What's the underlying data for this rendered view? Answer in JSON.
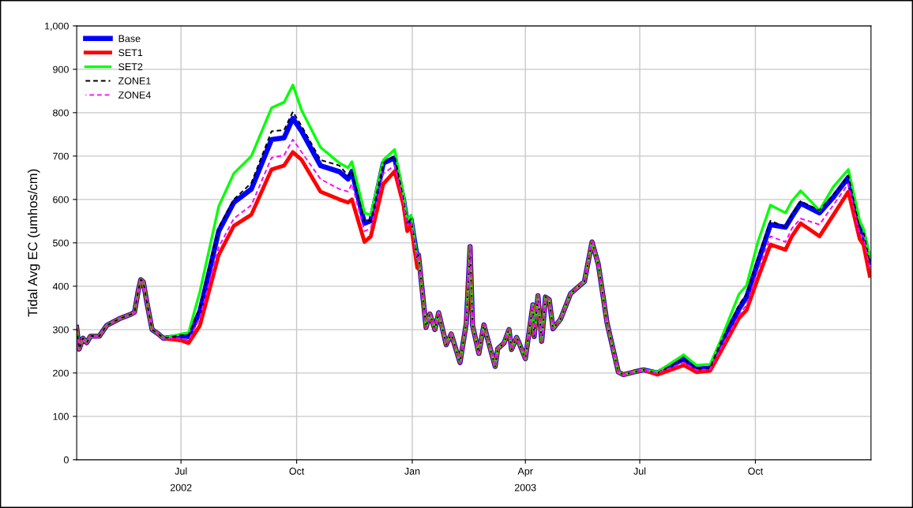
{
  "chart_data": {
    "type": "line",
    "ylabel": "Tidal Avg EC (umhos/cm)",
    "x": [
      "2002-04-09",
      "2002-04-11",
      "2002-04-14",
      "2002-04-17",
      "2002-04-20",
      "2002-04-27",
      "2002-05-03",
      "2002-05-13",
      "2002-05-22",
      "2002-05-25",
      "2002-05-28",
      "2002-05-30",
      "2002-06-01",
      "2002-06-04",
      "2002-06-08",
      "2002-06-13",
      "2002-06-17",
      "2002-07-01",
      "2002-07-07",
      "2002-07-16",
      "2002-07-31",
      "2002-08-12",
      "2002-08-26",
      "2002-09-11",
      "2002-09-21",
      "2002-09-28",
      "2002-10-05",
      "2002-10-20",
      "2002-11-04",
      "2002-11-11",
      "2002-11-14",
      "2002-11-24",
      "2002-11-29",
      "2002-12-09",
      "2002-12-18",
      "2002-12-25",
      "2002-12-28",
      "2002-12-31",
      "2003-01-05",
      "2003-01-06",
      "2003-01-12",
      "2003-01-15",
      "2003-01-19",
      "2003-01-22",
      "2003-01-27",
      "2003-01-28",
      "2003-02-01",
      "2003-02-08",
      "2003-02-13",
      "2003-02-16",
      "2003-02-18",
      "2003-02-23",
      "2003-02-27",
      "2003-03-02",
      "2003-03-08",
      "2003-03-10",
      "2003-03-15",
      "2003-03-19",
      "2003-03-21",
      "2003-03-25",
      "2003-03-27",
      "2003-04-01",
      "2003-04-07",
      "2003-04-08",
      "2003-04-11",
      "2003-04-14",
      "2003-04-17",
      "2003-04-20",
      "2003-04-23",
      "2003-04-29",
      "2003-05-07",
      "2003-05-18",
      "2003-05-24",
      "2003-05-29",
      "2003-06-05",
      "2003-06-14",
      "2003-06-18",
      "2003-06-26",
      "2003-07-04",
      "2003-07-15",
      "2003-08-05",
      "2003-08-15",
      "2003-08-26",
      "2003-09-03",
      "2003-09-18",
      "2003-09-24",
      "2003-10-03",
      "2003-10-13",
      "2003-10-25",
      "2003-10-30",
      "2003-11-06",
      "2003-11-21",
      "2003-12-02",
      "2003-12-14",
      "2003-12-23",
      "2003-12-26",
      "2003-12-31"
    ],
    "series": [
      {
        "name": "Base",
        "color": "#0000ff",
        "line_style": "solid",
        "values": [
          305,
          255,
          280,
          270,
          285,
          285,
          310,
          325,
          335,
          340,
          390,
          415,
          410,
          360,
          300,
          290,
          280,
          285,
          284,
          342,
          527,
          593,
          624,
          738,
          742,
          787,
          757,
          678,
          664,
          647,
          665,
          545,
          551,
          684,
          696,
          600,
          545,
          555,
          465,
          472,
          305,
          336,
          300,
          339,
          278,
          265,
          290,
          224,
          315,
          491,
          309,
          245,
          311,
          278,
          215,
          256,
          269,
          300,
          254,
          282,
          269,
          233,
          357,
          284,
          378,
          273,
          375,
          369,
          302,
          324,
          383,
          411,
          502,
          451,
          315,
          202,
          196,
          202,
          207,
          200,
          233,
          209,
          211,
          264,
          348,
          375,
          455,
          542,
          536,
          560,
          591,
          569,
          605,
          651,
          533,
          520,
          455
        ]
      },
      {
        "name": "SET1",
        "color": "#ff0000",
        "line_style": "solid",
        "values": [
          305,
          255,
          280,
          270,
          285,
          285,
          310,
          325,
          335,
          340,
          390,
          415,
          410,
          360,
          300,
          290,
          280,
          275,
          269,
          309,
          472,
          539,
          565,
          669,
          678,
          709,
          691,
          618,
          600,
          593,
          600,
          502,
          515,
          636,
          665,
          587,
          527,
          540,
          442,
          472,
          305,
          336,
          300,
          339,
          278,
          265,
          290,
          224,
          315,
          491,
          309,
          245,
          311,
          278,
          215,
          256,
          269,
          300,
          254,
          282,
          269,
          233,
          357,
          284,
          378,
          273,
          375,
          369,
          302,
          324,
          383,
          411,
          502,
          451,
          315,
          202,
          196,
          202,
          207,
          196,
          218,
          202,
          205,
          247,
          327,
          345,
          418,
          496,
          484,
          515,
          545,
          515,
          564,
          618,
          509,
          496,
          424
        ]
      },
      {
        "name": "SET2",
        "color": "#00ff00",
        "line_style": "solid",
        "values": [
          305,
          255,
          280,
          270,
          285,
          285,
          310,
          325,
          335,
          340,
          390,
          415,
          410,
          360,
          300,
          290,
          280,
          290,
          293,
          387,
          584,
          660,
          700,
          811,
          824,
          864,
          805,
          720,
          684,
          673,
          687,
          569,
          564,
          691,
          715,
          611,
          551,
          564,
          465,
          472,
          305,
          336,
          300,
          339,
          278,
          265,
          290,
          224,
          315,
          491,
          309,
          245,
          311,
          278,
          215,
          256,
          269,
          300,
          254,
          282,
          269,
          233,
          357,
          284,
          378,
          273,
          375,
          369,
          302,
          324,
          383,
          411,
          502,
          451,
          315,
          202,
          196,
          202,
          207,
          202,
          242,
          218,
          220,
          273,
          382,
          402,
          502,
          587,
          569,
          596,
          620,
          575,
          629,
          669,
          551,
          533,
          466
        ]
      },
      {
        "name": "ZONE1",
        "color": "#000000",
        "line_style": "dashed",
        "values": [
          305,
          255,
          280,
          270,
          285,
          285,
          310,
          325,
          335,
          340,
          390,
          415,
          410,
          360,
          300,
          290,
          280,
          287,
          287,
          351,
          536,
          600,
          638,
          757,
          760,
          802,
          769,
          691,
          678,
          655,
          665,
          551,
          551,
          684,
          700,
          600,
          545,
          555,
          465,
          472,
          305,
          336,
          300,
          339,
          278,
          265,
          290,
          224,
          315,
          491,
          309,
          245,
          311,
          278,
          215,
          256,
          269,
          300,
          254,
          282,
          269,
          233,
          357,
          284,
          378,
          273,
          375,
          369,
          302,
          324,
          383,
          411,
          502,
          451,
          315,
          202,
          196,
          202,
          207,
          200,
          233,
          211,
          212,
          268,
          357,
          382,
          466,
          551,
          536,
          566,
          596,
          575,
          611,
          655,
          533,
          525,
          455
        ]
      },
      {
        "name": "ZONE4",
        "color": "#ff00ff",
        "line_style": "dashed",
        "values": [
          305,
          255,
          280,
          270,
          285,
          285,
          310,
          325,
          335,
          340,
          390,
          415,
          410,
          360,
          300,
          290,
          280,
          280,
          275,
          327,
          490,
          556,
          587,
          696,
          702,
          738,
          709,
          647,
          624,
          618,
          636,
          527,
          533,
          660,
          678,
          593,
          539,
          550,
          460,
          472,
          305,
          336,
          300,
          339,
          278,
          265,
          290,
          224,
          315,
          491,
          309,
          245,
          311,
          278,
          215,
          256,
          269,
          300,
          254,
          282,
          269,
          233,
          357,
          284,
          378,
          273,
          375,
          369,
          302,
          324,
          383,
          411,
          502,
          451,
          315,
          202,
          196,
          202,
          207,
          200,
          224,
          207,
          208,
          255,
          333,
          357,
          436,
          515,
          502,
          533,
          556,
          542,
          587,
          636,
          520,
          515,
          442
        ]
      }
    ],
    "xlim": [
      "2002-04-09",
      "2004-01-01"
    ],
    "xticks": [
      {
        "value": "2002-07-01",
        "label": "Jul"
      },
      {
        "value": "2002-10-01",
        "label": "Oct"
      },
      {
        "value": "2003-01-01",
        "label": "Jan"
      },
      {
        "value": "2003-04-01",
        "label": "Apr"
      },
      {
        "value": "2003-07-01",
        "label": "Jul"
      },
      {
        "value": "2003-10-01",
        "label": "Oct"
      }
    ],
    "ylim": [
      0,
      1000
    ],
    "yticks": [
      0,
      100,
      200,
      300,
      400,
      500,
      600,
      700,
      800,
      900,
      {
        "value": 1000,
        "label": "1,000"
      }
    ],
    "annotations": [
      "2002",
      "2003"
    ],
    "grid": true,
    "legend": "top left",
    "marker": "none"
  }
}
